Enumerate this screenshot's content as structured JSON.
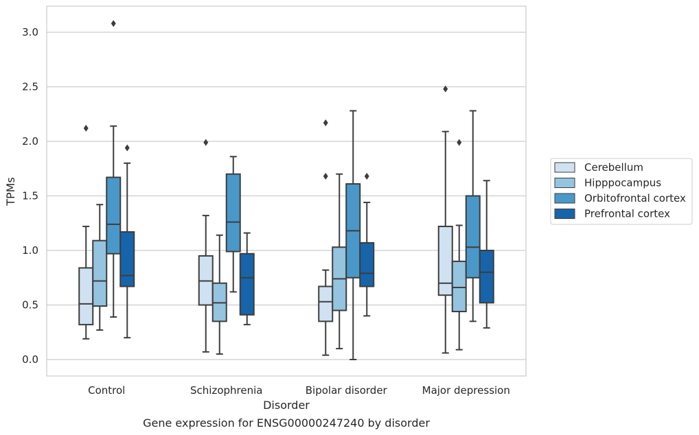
{
  "chart_data": {
    "type": "box",
    "caption": "Gene expression for ENSG00000247240 by disorder",
    "xlabel": "Disorder",
    "ylabel": "TPMs",
    "ylim": [
      -0.15,
      3.25
    ],
    "yticks": [
      0.0,
      0.5,
      1.0,
      1.5,
      2.0,
      2.5,
      3.0
    ],
    "ytick_labels": [
      "0.0",
      "0.5",
      "1.0",
      "1.5",
      "2.0",
      "2.5",
      "3.0"
    ],
    "grid": "horizontal",
    "legend_position": "right",
    "categories": [
      "Control",
      "Schizophrenia",
      "Bipolar disorder",
      "Major depression"
    ],
    "series": [
      {
        "name": "Cerebellum",
        "color": "#d0e1f2",
        "boxes": [
          {
            "whislo": 0.19,
            "q1": 0.32,
            "med": 0.51,
            "q3": 0.84,
            "whishi": 1.22,
            "fliers": [
              2.12
            ]
          },
          {
            "whislo": 0.07,
            "q1": 0.5,
            "med": 0.72,
            "q3": 0.95,
            "whishi": 1.32,
            "fliers": [
              1.99
            ]
          },
          {
            "whislo": 0.04,
            "q1": 0.35,
            "med": 0.53,
            "q3": 0.67,
            "whishi": 0.82,
            "fliers": [
              1.68,
              2.17
            ]
          },
          {
            "whislo": 0.06,
            "q1": 0.59,
            "med": 0.7,
            "q3": 1.22,
            "whishi": 2.09,
            "fliers": [
              2.48
            ]
          }
        ]
      },
      {
        "name": "Hipppocampus",
        "color": "#94c4df",
        "boxes": [
          {
            "whislo": 0.27,
            "q1": 0.49,
            "med": 0.72,
            "q3": 1.09,
            "whishi": 1.42,
            "fliers": []
          },
          {
            "whislo": 0.05,
            "q1": 0.35,
            "med": 0.52,
            "q3": 0.7,
            "whishi": 1.14,
            "fliers": []
          },
          {
            "whislo": 0.1,
            "q1": 0.45,
            "med": 0.74,
            "q3": 1.03,
            "whishi": 1.7,
            "fliers": []
          },
          {
            "whislo": 0.09,
            "q1": 0.44,
            "med": 0.66,
            "q3": 0.9,
            "whishi": 1.23,
            "fliers": [
              1.99
            ]
          }
        ]
      },
      {
        "name": "Orbitofrontal cortex",
        "color": "#4a98c9",
        "boxes": [
          {
            "whislo": 0.39,
            "q1": 0.97,
            "med": 1.24,
            "q3": 1.67,
            "whishi": 2.14,
            "fliers": [
              3.08
            ]
          },
          {
            "whislo": 0.62,
            "q1": 0.99,
            "med": 1.26,
            "q3": 1.7,
            "whishi": 1.86,
            "fliers": []
          },
          {
            "whislo": 0.0,
            "q1": 0.75,
            "med": 1.18,
            "q3": 1.61,
            "whishi": 2.28,
            "fliers": []
          },
          {
            "whislo": 0.35,
            "q1": 0.75,
            "med": 1.03,
            "q3": 1.5,
            "whishi": 2.28,
            "fliers": []
          }
        ]
      },
      {
        "name": "Prefrontal cortex",
        "color": "#1764ab",
        "boxes": [
          {
            "whislo": 0.2,
            "q1": 0.67,
            "med": 0.77,
            "q3": 1.17,
            "whishi": 1.8,
            "fliers": [
              1.94
            ]
          },
          {
            "whislo": 0.32,
            "q1": 0.41,
            "med": 0.75,
            "q3": 0.97,
            "whishi": 1.16,
            "fliers": []
          },
          {
            "whislo": 0.4,
            "q1": 0.67,
            "med": 0.79,
            "q3": 1.07,
            "whishi": 1.44,
            "fliers": [
              1.68
            ]
          },
          {
            "whislo": 0.29,
            "q1": 0.52,
            "med": 0.8,
            "q3": 1.0,
            "whishi": 1.64,
            "fliers": []
          }
        ]
      }
    ]
  }
}
